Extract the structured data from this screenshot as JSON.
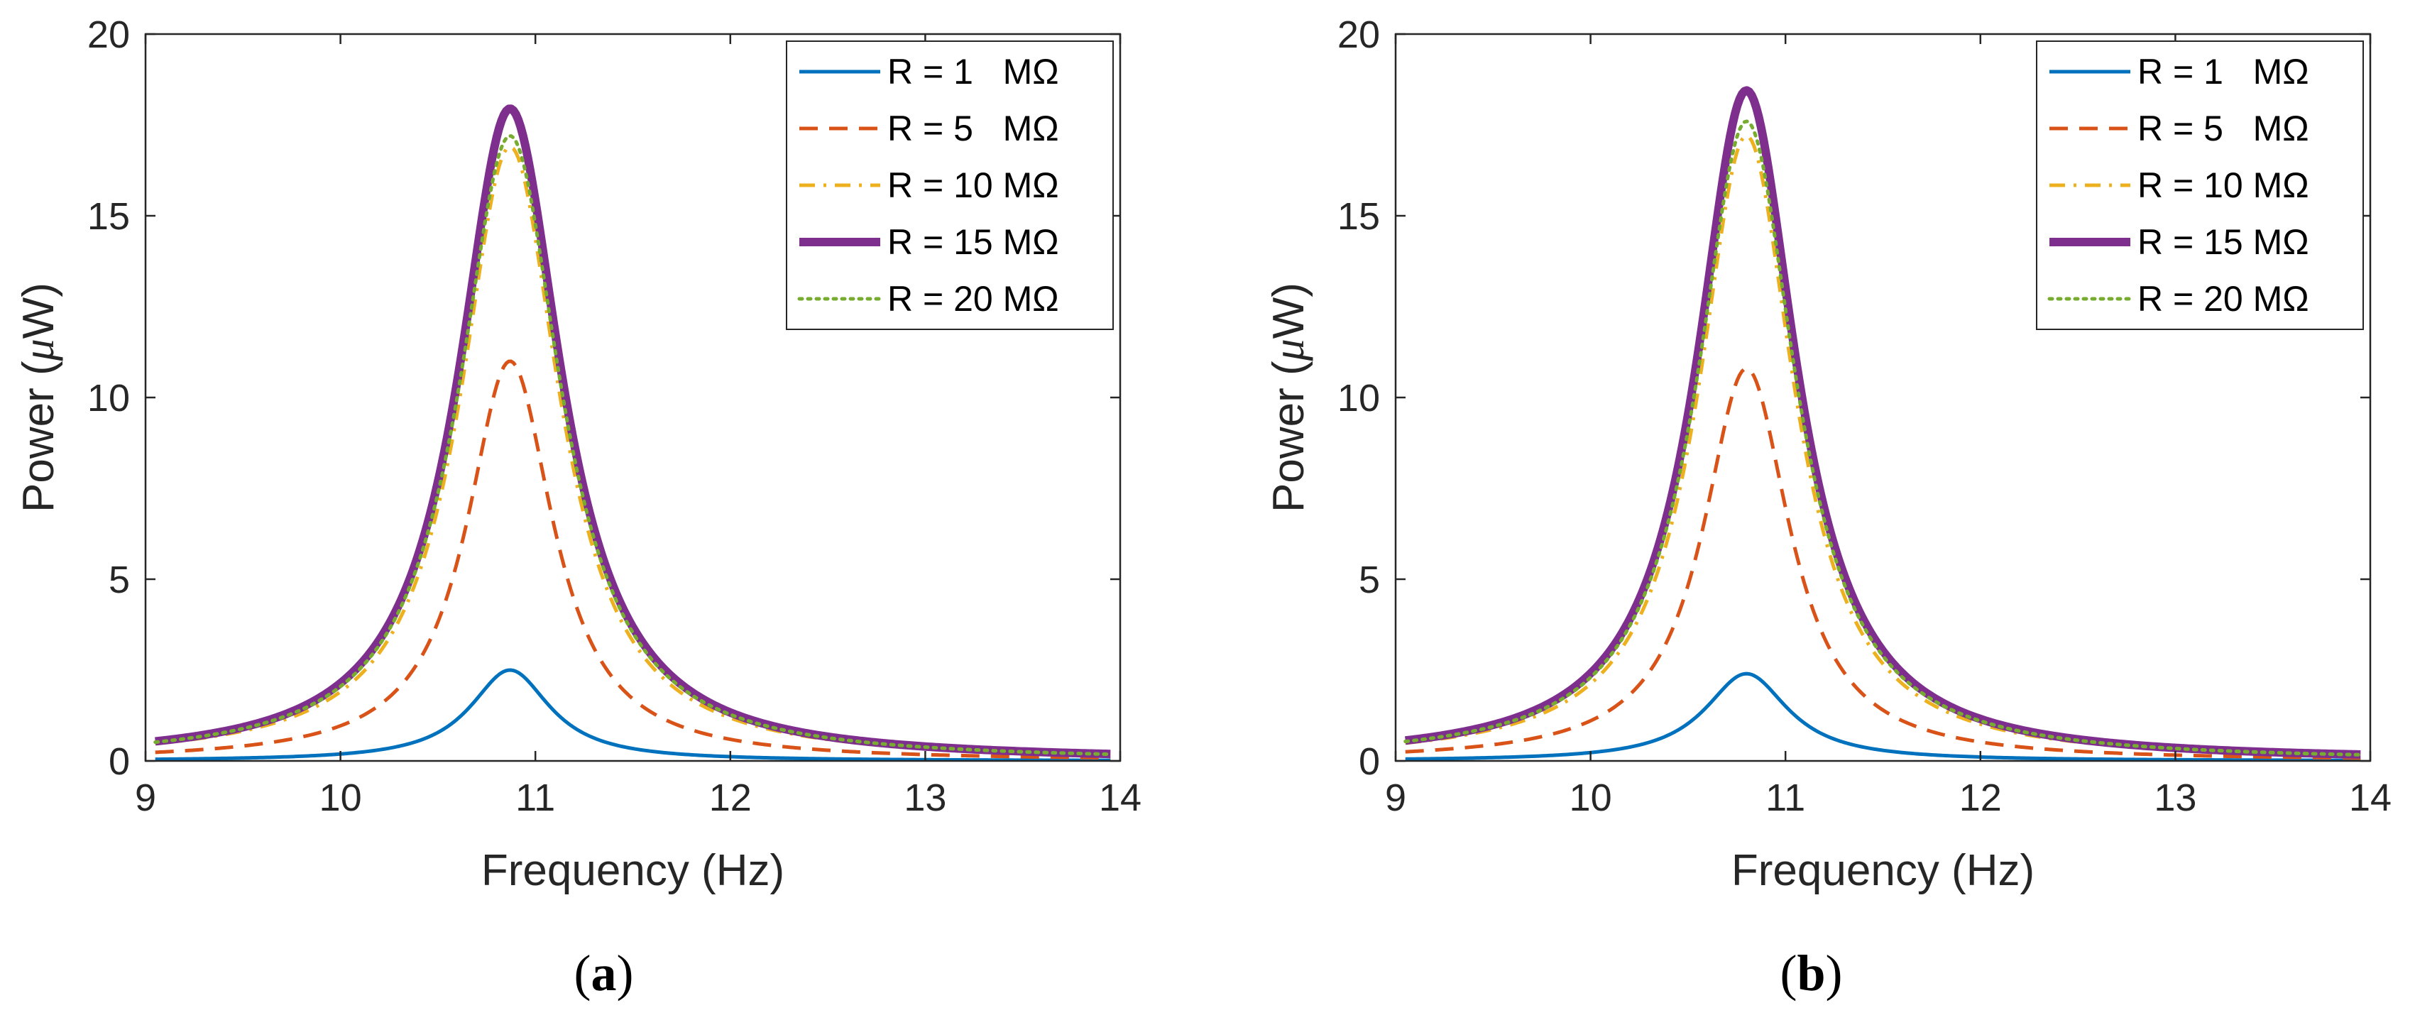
{
  "chart_data": [
    {
      "type": "line",
      "panel_label": "a",
      "xlabel": "Frequency (Hz)",
      "ylabel_prefix": "Power (",
      "ylabel_mu": "μ",
      "ylabel_suffix": "W)",
      "xlim": [
        9,
        14
      ],
      "ylim": [
        0,
        20
      ],
      "xticks": [
        "9",
        "10",
        "11",
        "12",
        "13",
        "14"
      ],
      "yticks": [
        "0",
        "5",
        "10",
        "15",
        "20"
      ],
      "legend_position": "top-right",
      "series": [
        {
          "name": "R = 1   MΩ",
          "color": "#0072BD",
          "style": "solid",
          "peak_f": 10.87,
          "peak_p": 2.5,
          "gamma": 0.25
        },
        {
          "name": "R = 5   MΩ",
          "color": "#D95319",
          "style": "dashed",
          "peak_f": 10.87,
          "peak_p": 11.0,
          "gamma": 0.27
        },
        {
          "name": "R = 10 MΩ",
          "color": "#EDB120",
          "style": "dashdot",
          "peak_f": 10.87,
          "peak_p": 16.9,
          "gamma": 0.31
        },
        {
          "name": "R = 15 MΩ",
          "color": "#7E2F8E",
          "style": "thick",
          "peak_f": 10.87,
          "peak_p": 17.95,
          "gamma": 0.32
        },
        {
          "name": "R = 20 MΩ",
          "color": "#77AC30",
          "style": "dotted",
          "peak_f": 10.87,
          "peak_p": 17.2,
          "gamma": 0.32
        }
      ]
    },
    {
      "type": "line",
      "panel_label": "b",
      "xlabel": "Frequency (Hz)",
      "ylabel_prefix": "Power (",
      "ylabel_mu": "μ",
      "ylabel_suffix": "W)",
      "xlim": [
        9,
        14
      ],
      "ylim": [
        0,
        20
      ],
      "xticks": [
        "9",
        "10",
        "11",
        "12",
        "13",
        "14"
      ],
      "yticks": [
        "0",
        "5",
        "10",
        "15",
        "20"
      ],
      "legend_position": "top-right",
      "series": [
        {
          "name": "R = 1   MΩ",
          "color": "#0072BD",
          "style": "solid",
          "peak_f": 10.8,
          "peak_p": 2.4,
          "gamma": 0.26
        },
        {
          "name": "R = 5   MΩ",
          "color": "#D95319",
          "style": "dashed",
          "peak_f": 10.8,
          "peak_p": 10.8,
          "gamma": 0.27
        },
        {
          "name": "R = 10 MΩ",
          "color": "#EDB120",
          "style": "dashdot",
          "peak_f": 10.8,
          "peak_p": 17.2,
          "gamma": 0.3
        },
        {
          "name": "R = 15 MΩ",
          "color": "#7E2F8E",
          "style": "thick",
          "peak_f": 10.8,
          "peak_p": 18.45,
          "gamma": 0.31
        },
        {
          "name": "R = 20 MΩ",
          "color": "#77AC30",
          "style": "dotted",
          "peak_f": 10.8,
          "peak_p": 17.6,
          "gamma": 0.31
        }
      ]
    }
  ]
}
